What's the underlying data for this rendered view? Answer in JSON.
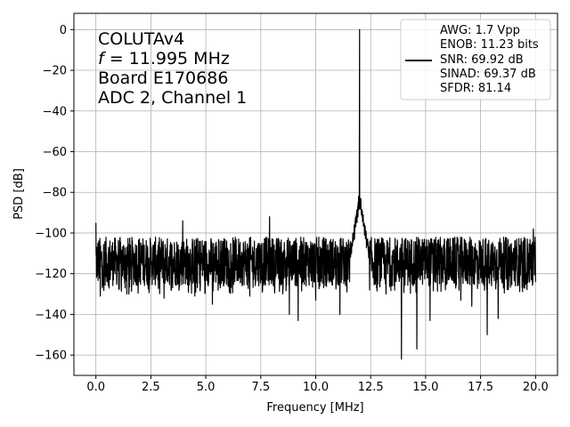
{
  "chart_data": {
    "type": "line",
    "xlabel": "Frequency [MHz]",
    "ylabel": "PSD [dB]",
    "xlim": [
      -1.0,
      21.0
    ],
    "ylim": [
      -170,
      8
    ],
    "xticks": [
      0.0,
      2.5,
      5.0,
      7.5,
      10.0,
      12.5,
      15.0,
      17.5,
      20.0
    ],
    "xtick_labels": [
      "0.0",
      "2.5",
      "5.0",
      "7.5",
      "10.0",
      "12.5",
      "15.0",
      "17.5",
      "20.0"
    ],
    "yticks": [
      0,
      -20,
      -40,
      -60,
      -80,
      -100,
      -120,
      -140,
      -160
    ],
    "ytick_labels": [
      "0",
      "−20",
      "−40",
      "−60",
      "−80",
      "−100",
      "−120",
      "−140",
      "−160"
    ],
    "grid": true,
    "annotation_lines": [
      "COLUTAv4",
      "= 11.995 MHz",
      "Board E170686",
      "ADC 2, Channel 1"
    ],
    "annotation_f_symbol": "f",
    "legend": {
      "placement": "top-right",
      "entries": [
        {
          "label": "AWG: 1.7 Vpp",
          "has_line": false
        },
        {
          "label": "ENOB: 11.23 bits",
          "has_line": false
        },
        {
          "label": "SNR: 69.92 dB",
          "has_line": true
        },
        {
          "label": "SINAD: 69.37 dB",
          "has_line": false
        },
        {
          "label": "SFDR: 81.14",
          "has_line": false
        }
      ]
    },
    "series": [
      {
        "color": "#000000",
        "noise_floor_db": -113,
        "noise_range_db": [
          -126,
          -102
        ],
        "fundamental": {
          "x": 11.995,
          "y": 0
        },
        "features": [
          {
            "x": 0.0,
            "y": -95
          },
          {
            "x": 0.2,
            "y": -131
          },
          {
            "x": 1.5,
            "y": -130
          },
          {
            "x": 3.1,
            "y": -132
          },
          {
            "x": 3.95,
            "y": -94
          },
          {
            "x": 4.5,
            "y": -131
          },
          {
            "x": 5.3,
            "y": -135
          },
          {
            "x": 7.0,
            "y": -131
          },
          {
            "x": 7.9,
            "y": -92
          },
          {
            "x": 8.8,
            "y": -140
          },
          {
            "x": 9.2,
            "y": -143
          },
          {
            "x": 10.0,
            "y": -133
          },
          {
            "x": 11.1,
            "y": -140
          },
          {
            "x": 11.95,
            "y": -82
          },
          {
            "x": 12.05,
            "y": -83
          },
          {
            "x": 13.2,
            "y": -130
          },
          {
            "x": 13.9,
            "y": -162
          },
          {
            "x": 14.6,
            "y": -157
          },
          {
            "x": 15.2,
            "y": -143
          },
          {
            "x": 16.6,
            "y": -133
          },
          {
            "x": 17.1,
            "y": -136
          },
          {
            "x": 17.8,
            "y": -150
          },
          {
            "x": 18.3,
            "y": -142
          },
          {
            "x": 19.9,
            "y": -98
          },
          {
            "x": 20.0,
            "y": -124
          }
        ]
      }
    ]
  }
}
